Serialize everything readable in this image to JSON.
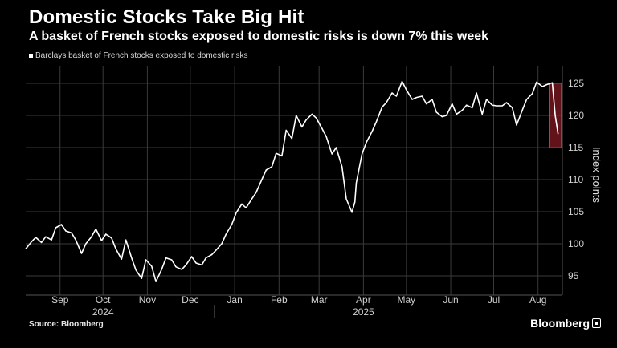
{
  "header": {
    "title": "Domestic Stocks Take Big Hit",
    "subtitle": "A basket of French stocks exposed to domestic risks is down 7% this week"
  },
  "footer": {
    "source": "Source: Bloomberg",
    "brand": "Bloomberg"
  },
  "colors": {
    "background": "#000000",
    "line": "#ffffff",
    "gridline": "#3a3a3a",
    "highlight": "#b0232e"
  },
  "chart_data": {
    "type": "line",
    "title": "Domestic Stocks Take Big Hit",
    "subtitle": "A basket of French stocks exposed to domestic risks is down 7% this week",
    "xlabel": "",
    "ylabel": "Index points",
    "ylim": [
      92,
      127
    ],
    "yticks": [
      95,
      100,
      105,
      110,
      115,
      120,
      125
    ],
    "xlim": [
      "2024-08-22",
      "2025-09-01"
    ],
    "x_tick_labels": [
      {
        "label": "Sep",
        "date": "2024-09-15"
      },
      {
        "label": "Oct",
        "date": "2024-10-15"
      },
      {
        "label": "Nov",
        "date": "2024-11-15"
      },
      {
        "label": "Dec",
        "date": "2024-12-15"
      },
      {
        "label": "Jan",
        "date": "2025-01-15"
      },
      {
        "label": "Feb",
        "date": "2025-02-15"
      },
      {
        "label": "Mar",
        "date": "2025-03-15"
      },
      {
        "label": "Apr",
        "date": "2025-04-15"
      },
      {
        "label": "May",
        "date": "2025-05-15"
      },
      {
        "label": "Jun",
        "date": "2025-06-15"
      },
      {
        "label": "Jul",
        "date": "2025-07-15"
      },
      {
        "label": "Aug",
        "date": "2025-08-15"
      }
    ],
    "x_year_labels": [
      {
        "label": "2024",
        "date": "2024-10-15"
      },
      {
        "label": "2025",
        "date": "2025-04-15"
      }
    ],
    "year_separator_date": "2025-01-01",
    "grid": true,
    "legend": "top-left",
    "highlight": {
      "x_start": "2025-08-25",
      "x_end": "2025-08-29",
      "y_min": 115,
      "y_max": 125
    },
    "series": [
      {
        "name": "Barclays basket of French stocks exposed to domestic risks",
        "x": [
          "2024-08-22",
          "2024-08-26",
          "2024-08-29",
          "2024-09-02",
          "2024-09-05",
          "2024-09-09",
          "2024-09-12",
          "2024-09-16",
          "2024-09-19",
          "2024-09-23",
          "2024-09-26",
          "2024-09-30",
          "2024-10-03",
          "2024-10-07",
          "2024-10-10",
          "2024-10-14",
          "2024-10-17",
          "2024-10-21",
          "2024-10-24",
          "2024-10-28",
          "2024-10-31",
          "2024-11-04",
          "2024-11-07",
          "2024-11-11",
          "2024-11-14",
          "2024-11-18",
          "2024-11-21",
          "2024-11-25",
          "2024-11-28",
          "2024-12-02",
          "2024-12-05",
          "2024-12-09",
          "2024-12-12",
          "2024-12-16",
          "2024-12-19",
          "2024-12-23",
          "2024-12-26",
          "2024-12-30",
          "2025-01-02",
          "2025-01-06",
          "2025-01-09",
          "2025-01-13",
          "2025-01-16",
          "2025-01-20",
          "2025-01-23",
          "2025-01-27",
          "2025-01-30",
          "2025-02-03",
          "2025-02-06",
          "2025-02-10",
          "2025-02-13",
          "2025-02-17",
          "2025-02-20",
          "2025-02-24",
          "2025-02-27",
          "2025-03-03",
          "2025-03-06",
          "2025-03-10",
          "2025-03-13",
          "2025-03-17",
          "2025-03-20",
          "2025-03-24",
          "2025-03-27",
          "2025-03-31",
          "2025-04-03",
          "2025-04-07",
          "2025-04-09",
          "2025-04-10",
          "2025-04-14",
          "2025-04-17",
          "2025-04-21",
          "2025-04-24",
          "2025-04-28",
          "2025-05-01",
          "2025-05-05",
          "2025-05-08",
          "2025-05-12",
          "2025-05-15",
          "2025-05-19",
          "2025-05-22",
          "2025-05-26",
          "2025-05-29",
          "2025-06-02",
          "2025-06-05",
          "2025-06-09",
          "2025-06-12",
          "2025-06-16",
          "2025-06-19",
          "2025-06-23",
          "2025-06-26",
          "2025-06-30",
          "2025-07-03",
          "2025-07-07",
          "2025-07-10",
          "2025-07-14",
          "2025-07-17",
          "2025-07-21",
          "2025-07-24",
          "2025-07-28",
          "2025-07-31",
          "2025-08-04",
          "2025-08-07",
          "2025-08-11",
          "2025-08-14",
          "2025-08-18",
          "2025-08-21",
          "2025-08-25",
          "2025-08-27",
          "2025-08-29"
        ],
        "values": [
          99.2,
          100.3,
          101.0,
          100.2,
          101.1,
          100.6,
          102.5,
          103.0,
          102.0,
          101.7,
          100.6,
          98.5,
          100.0,
          101.1,
          102.3,
          100.5,
          101.5,
          100.9,
          99.2,
          97.6,
          100.6,
          97.8,
          95.9,
          94.6,
          97.5,
          96.5,
          94.1,
          96.0,
          97.8,
          97.5,
          96.4,
          96.0,
          96.7,
          98.0,
          97.0,
          96.7,
          97.8,
          98.3,
          99.0,
          100.0,
          101.5,
          103.0,
          104.8,
          106.2,
          105.6,
          107.0,
          108.0,
          110.0,
          111.5,
          112.0,
          114.1,
          113.7,
          117.7,
          116.4,
          120.0,
          118.2,
          119.3,
          120.2,
          119.6,
          118.0,
          116.7,
          114.0,
          115.0,
          112.0,
          107.0,
          104.9,
          106.5,
          109.5,
          114.0,
          115.8,
          117.5,
          119.0,
          121.3,
          122.0,
          123.5,
          123.0,
          125.3,
          124.0,
          122.5,
          122.8,
          123.0,
          121.8,
          122.5,
          120.5,
          119.8,
          120.0,
          121.8,
          120.2,
          120.8,
          121.6,
          121.2,
          123.5,
          120.2,
          122.5,
          121.6,
          121.5,
          121.5,
          122.0,
          121.2,
          118.5,
          120.8,
          122.5,
          123.4,
          125.2,
          124.5,
          124.8,
          125.1,
          120.0,
          117.1
        ]
      }
    ]
  }
}
